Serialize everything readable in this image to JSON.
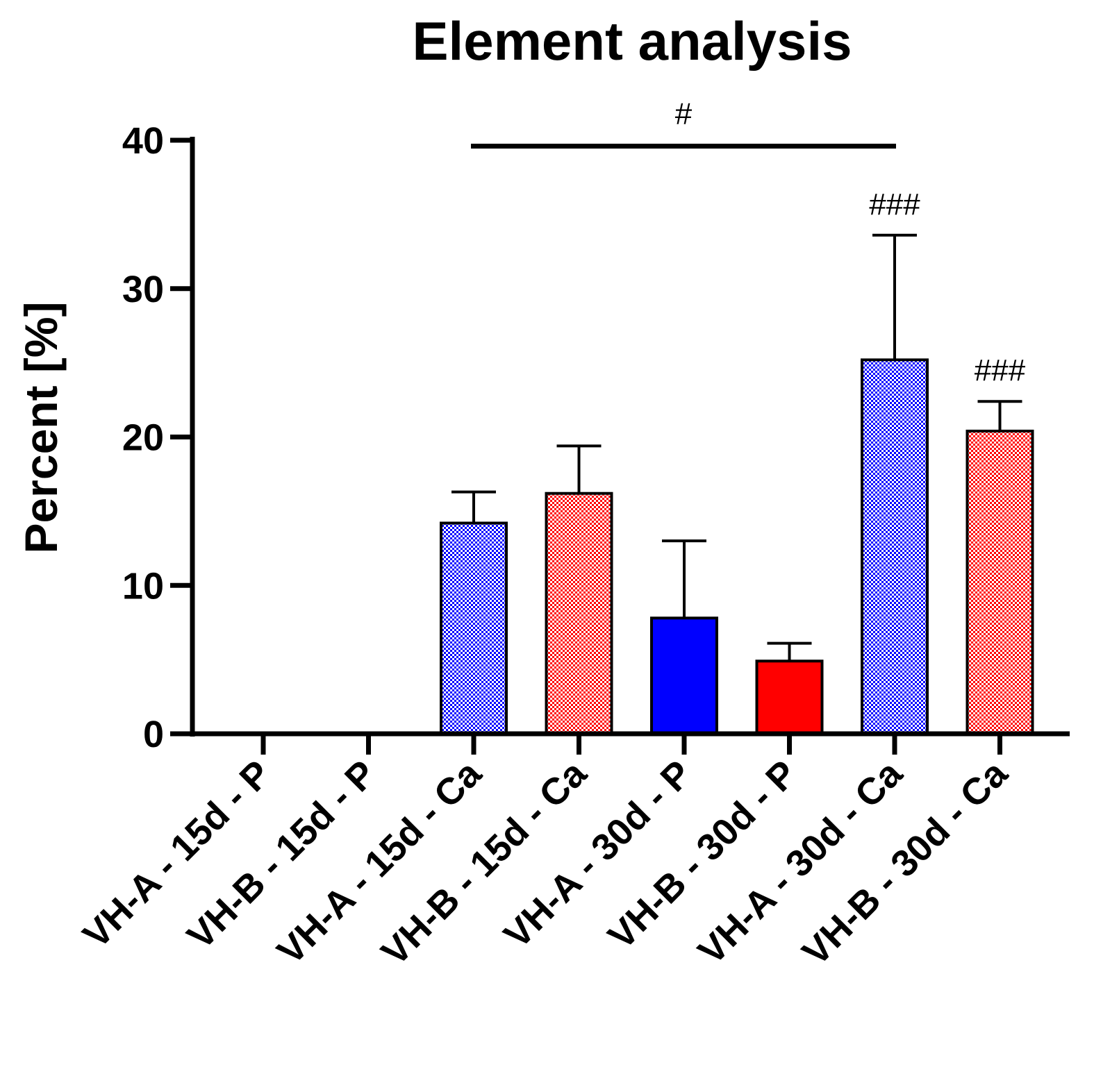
{
  "chart_data": {
    "type": "bar",
    "title": "Element analysis",
    "xlabel": "",
    "ylabel": "Percent [%]",
    "ylim": [
      0,
      40
    ],
    "yticks": [
      0,
      10,
      20,
      30,
      40
    ],
    "yticks_labels": [
      "0",
      "10",
      "20",
      "30",
      "40"
    ],
    "categories": [
      "VH-A - 15d - P",
      "VH-B - 15d - P",
      "VH-A - 15d - Ca",
      "VH-B - 15d - Ca",
      "VH-A - 30d - P",
      "VH-B - 30d - P",
      "VH-A - 30d - Ca",
      "VH-B - 30d - Ca"
    ],
    "values": [
      0,
      0,
      14.2,
      16.2,
      7.8,
      4.9,
      25.2,
      20.4
    ],
    "errors": [
      0,
      0,
      2.1,
      3.2,
      5.2,
      1.2,
      8.4,
      2.0
    ],
    "fills": [
      "none",
      "none",
      "pattern",
      "pattern",
      "solid",
      "solid",
      "pattern",
      "pattern"
    ],
    "colors": [
      "#0000ff",
      "#ff0000",
      "#0000ff",
      "#ff0000",
      "#0000ff",
      "#ff0000",
      "#0000ff",
      "#ff0000"
    ],
    "annotations": [
      {
        "text": "#",
        "type": "bracket",
        "from": 2,
        "to": 6,
        "y": 39.6
      },
      {
        "text": "###",
        "type": "label",
        "bar": 6
      },
      {
        "text": "###",
        "type": "label",
        "bar": 7
      }
    ]
  }
}
